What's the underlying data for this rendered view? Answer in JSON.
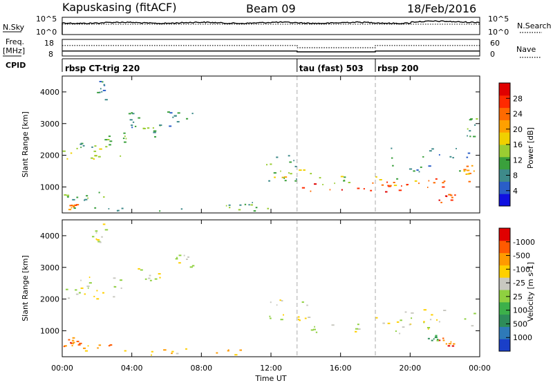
{
  "header": {
    "station": "Kapuskasing (fitACF)",
    "beam": "Beam 09",
    "date": "18/Feb/2016"
  },
  "side_labels": {
    "nsky": "N.Sky",
    "freq_top": "Freq.",
    "freq_unit": "[MHz]",
    "cpid": "CPID",
    "nsearch": "N.Search",
    "nave": "Nave"
  },
  "chart_data": [
    {
      "type": "line",
      "panel": "noise",
      "ylabels_left": [
        "10^5",
        "10^0"
      ],
      "ylabels_right": [
        "10^5",
        "10^0"
      ],
      "series": [
        {
          "name": "N.Sky",
          "style": "solid"
        },
        {
          "name": "N.Search",
          "style": "dotted"
        }
      ]
    },
    {
      "type": "line",
      "panel": "freq_nave",
      "left_ticks": [
        "18",
        "8"
      ],
      "right_ticks": [
        "60",
        "0"
      ],
      "series": [
        {
          "name": "Freq.",
          "style": "solid",
          "x": [
            0,
            13.5,
            13.5,
            18.0,
            18.0,
            24
          ],
          "y": [
            11,
            11,
            10.5,
            10.5,
            11,
            11
          ]
        },
        {
          "name": "Nave",
          "style": "dotted",
          "x": [
            0,
            13.5,
            13.5,
            18.0,
            18.0,
            24
          ],
          "y": [
            38,
            38,
            30,
            30,
            38,
            38
          ]
        }
      ]
    },
    {
      "type": "table",
      "panel": "cpid",
      "modes": [
        {
          "label": "rbsp CT-trig 220",
          "start": 0
        },
        {
          "label": "tau (fast) 503",
          "start": 13.5
        },
        {
          "label": "rbsp 200",
          "start": 18.0
        }
      ]
    },
    {
      "type": "heatmap",
      "panel": "power",
      "ylabel": "Slant Range [km]",
      "ylim": [
        180,
        4500
      ],
      "yticks": [
        1000,
        2000,
        3000,
        4000
      ],
      "xlim": [
        0,
        24
      ],
      "colorbar": {
        "label": "Power [dB]",
        "ticks": [
          "4",
          "8",
          "12",
          "16",
          "20",
          "24",
          "28"
        ],
        "colors": [
          "#1010e0",
          "#2a5ec8",
          "#3e8a8a",
          "#3aa03c",
          "#9acd32",
          "#f0d000",
          "#ffa000",
          "#ff6a00",
          "#ff2a00",
          "#e00000"
        ]
      },
      "regions": [
        {
          "x0": 0.2,
          "x1": 0.8,
          "y0": 300,
          "y1": 500,
          "level": 7
        },
        {
          "x0": 0.0,
          "x1": 12.0,
          "y0": 260,
          "y1": 360,
          "level": 3
        },
        {
          "x0": 0.0,
          "x1": 3.0,
          "y0": 600,
          "y1": 900,
          "level": 3
        },
        {
          "x0": 0.0,
          "x1": 3.8,
          "y0": 1850,
          "y1": 2250,
          "level": 4
        },
        {
          "x0": 1.0,
          "x1": 2.8,
          "y0": 2200,
          "y1": 2400,
          "level": 3
        },
        {
          "x0": 2.4,
          "x1": 3.8,
          "y0": 2400,
          "y1": 2750,
          "level": 3
        },
        {
          "x0": 3.8,
          "x1": 4.4,
          "y0": 2800,
          "y1": 3400,
          "level": 2
        },
        {
          "x0": 4.5,
          "x1": 5.6,
          "y0": 2600,
          "y1": 3000,
          "level": 3
        },
        {
          "x0": 1.6,
          "x1": 2.6,
          "y0": 3700,
          "y1": 4400,
          "level": 2
        },
        {
          "x0": 6.0,
          "x1": 7.5,
          "y0": 2900,
          "y1": 3400,
          "level": 2
        },
        {
          "x0": 9.0,
          "x1": 11.5,
          "y0": 350,
          "y1": 550,
          "level": 3
        },
        {
          "x0": 11.6,
          "x1": 13.6,
          "y0": 1200,
          "y1": 2100,
          "level": 3
        },
        {
          "x0": 12.0,
          "x1": 14.5,
          "y0": 1300,
          "y1": 1600,
          "level": 5
        },
        {
          "x0": 13.5,
          "x1": 20.0,
          "y0": 820,
          "y1": 1200,
          "level": 8
        },
        {
          "x0": 14.5,
          "x1": 20.5,
          "y0": 1000,
          "y1": 1350,
          "level": 4
        },
        {
          "x0": 18.5,
          "x1": 23.8,
          "y0": 1000,
          "y1": 1300,
          "level": 7
        },
        {
          "x0": 18.5,
          "x1": 23.5,
          "y0": 1500,
          "y1": 2300,
          "level": 2
        },
        {
          "x0": 21.5,
          "x1": 22.6,
          "y0": 450,
          "y1": 800,
          "level": 8
        },
        {
          "x0": 23.0,
          "x1": 23.8,
          "y0": 1400,
          "y1": 1700,
          "level": 6
        },
        {
          "x0": 23.2,
          "x1": 23.8,
          "y0": 2600,
          "y1": 3200,
          "level": 3
        }
      ]
    },
    {
      "type": "heatmap",
      "panel": "velocity",
      "ylabel": "Slant Range [km]",
      "ylim": [
        180,
        4500
      ],
      "yticks": [
        1000,
        2000,
        3000,
        4000
      ],
      "xlim": [
        0,
        24
      ],
      "xticks": [
        "00:00",
        "04:00",
        "08:00",
        "12:00",
        "16:00",
        "20:00",
        "00:00"
      ],
      "xlabel": "Time UT",
      "colorbar": {
        "label": "Velocity [m s-1]",
        "ticks": [
          "1000",
          "500",
          "100",
          "25",
          "-25",
          "-100",
          "-500",
          "-1000"
        ],
        "colors": [
          "#1a3fc8",
          "#2e7ab8",
          "#2e8c5a",
          "#3cb04a",
          "#8fd040",
          "#c8c8c0",
          "#ffd000",
          "#ff9a00",
          "#ff5a00",
          "#e00000"
        ]
      },
      "regions": [
        {
          "x0": 0.0,
          "x1": 3.0,
          "y0": 2000,
          "y1": 2350,
          "level": 5
        },
        {
          "x0": 1.0,
          "x1": 3.5,
          "y0": 2350,
          "y1": 2750,
          "level": 5
        },
        {
          "x0": 4.3,
          "x1": 5.6,
          "y0": 2600,
          "y1": 3000,
          "level": 5
        },
        {
          "x0": 1.6,
          "x1": 2.6,
          "y0": 3700,
          "y1": 4400,
          "level": 5
        },
        {
          "x0": 6.5,
          "x1": 7.5,
          "y0": 3000,
          "y1": 3400,
          "level": 5
        },
        {
          "x0": 0.0,
          "x1": 3.0,
          "y0": 300,
          "y1": 650,
          "level": 7
        },
        {
          "x0": 3.0,
          "x1": 11.0,
          "y0": 250,
          "y1": 450,
          "level": 6
        },
        {
          "x0": 0.2,
          "x1": 1.2,
          "y0": 550,
          "y1": 800,
          "level": 8
        },
        {
          "x0": 11.6,
          "x1": 14.5,
          "y0": 1300,
          "y1": 2000,
          "level": 5
        },
        {
          "x0": 13.5,
          "x1": 21.0,
          "y0": 900,
          "y1": 1450,
          "level": 5
        },
        {
          "x0": 19.5,
          "x1": 23.8,
          "y0": 1050,
          "y1": 1700,
          "level": 5
        },
        {
          "x0": 21.6,
          "x1": 22.5,
          "y0": 500,
          "y1": 800,
          "level": 8
        },
        {
          "x0": 21.0,
          "x1": 21.6,
          "y0": 700,
          "y1": 900,
          "level": 3
        }
      ]
    }
  ]
}
